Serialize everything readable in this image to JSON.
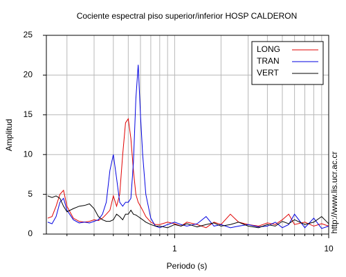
{
  "chart_data": {
    "type": "line",
    "title": "Cociente espectral piso superior/inferior  HOSP CALDERON",
    "x_label": "Periodo (s)",
    "y_label": "Amplitud",
    "annotation": "http://www.lis.ucr.ac.cr",
    "x_log": true,
    "grid": true,
    "legend": "upper right",
    "xlim": [
      0.147,
      10
    ],
    "ylim": [
      0,
      25
    ],
    "xticks": [
      1,
      10
    ],
    "xminorticks": [
      0.2,
      0.3,
      0.4,
      0.5,
      0.6,
      0.7,
      0.8,
      0.9,
      2,
      3,
      4,
      5,
      6,
      7,
      8,
      9
    ],
    "yticks": [
      0,
      5,
      10,
      15,
      20,
      25
    ],
    "x": [
      0.15,
      0.16,
      0.17,
      0.18,
      0.19,
      0.2,
      0.22,
      0.24,
      0.26,
      0.28,
      0.3,
      0.32,
      0.34,
      0.36,
      0.38,
      0.4,
      0.42,
      0.44,
      0.46,
      0.48,
      0.5,
      0.52,
      0.54,
      0.56,
      0.58,
      0.6,
      0.62,
      0.65,
      0.7,
      0.75,
      0.8,
      0.9,
      1.0,
      1.1,
      1.2,
      1.4,
      1.6,
      1.8,
      2.0,
      2.3,
      2.6,
      3.0,
      3.5,
      4,
      4.5,
      5,
      5.5,
      6,
      7,
      8,
      9,
      10
    ],
    "series": [
      {
        "name": "LONG",
        "color": "#e00000",
        "values": [
          2,
          2.2,
          3.5,
          5,
          5.5,
          3.5,
          2,
          1.6,
          1.5,
          1.6,
          1.8,
          1.7,
          2,
          2.5,
          3,
          4.8,
          3.5,
          5,
          10,
          14,
          14.5,
          12,
          8,
          5,
          4,
          3.5,
          3,
          2.2,
          1.5,
          1.2,
          1.2,
          1.5,
          1.3,
          1.0,
          1.5,
          1.2,
          0.8,
          1.5,
          1.2,
          2.5,
          1.5,
          1.2,
          1.0,
          1.4,
          1.2,
          1.8,
          2.5,
          1.2,
          1.5,
          1.0,
          1.3,
          1.0
        ]
      },
      {
        "name": "TRAN",
        "color": "#0000e0",
        "values": [
          1.5,
          1.3,
          2.2,
          4,
          4.5,
          3,
          1.8,
          1.4,
          1.5,
          1.4,
          1.6,
          1.8,
          2.5,
          4,
          8,
          10,
          7,
          4,
          3.5,
          4,
          4,
          4.5,
          9,
          17,
          21.3,
          15,
          10,
          5,
          2,
          1.0,
          0.8,
          1.2,
          1.5,
          1.2,
          1.0,
          1.3,
          2.2,
          1.0,
          1.2,
          0.8,
          1.0,
          1.2,
          0.9,
          1.0,
          1.5,
          0.8,
          1.2,
          2.5,
          0.8,
          2.0,
          0.7,
          1.0
        ]
      },
      {
        "name": "VERT",
        "color": "#000000",
        "values": [
          4.8,
          4.6,
          4.8,
          4.5,
          3.5,
          2.8,
          3.2,
          3.5,
          3.6,
          3.8,
          3.2,
          2.2,
          1.8,
          1.6,
          1.6,
          1.8,
          2.5,
          2.2,
          1.8,
          2.5,
          2.5,
          3,
          2.5,
          2.4,
          2.2,
          2.0,
          1.8,
          1.5,
          1.2,
          1.0,
          1.0,
          0.8,
          1.2,
          1.0,
          1.3,
          0.9,
          1.2,
          1.4,
          1.0,
          1.2,
          1.5,
          1.0,
          0.8,
          1.2,
          1.0,
          1.6,
          1.3,
          1.8,
          1.2,
          1.5,
          2.2,
          1.3
        ]
      }
    ]
  }
}
